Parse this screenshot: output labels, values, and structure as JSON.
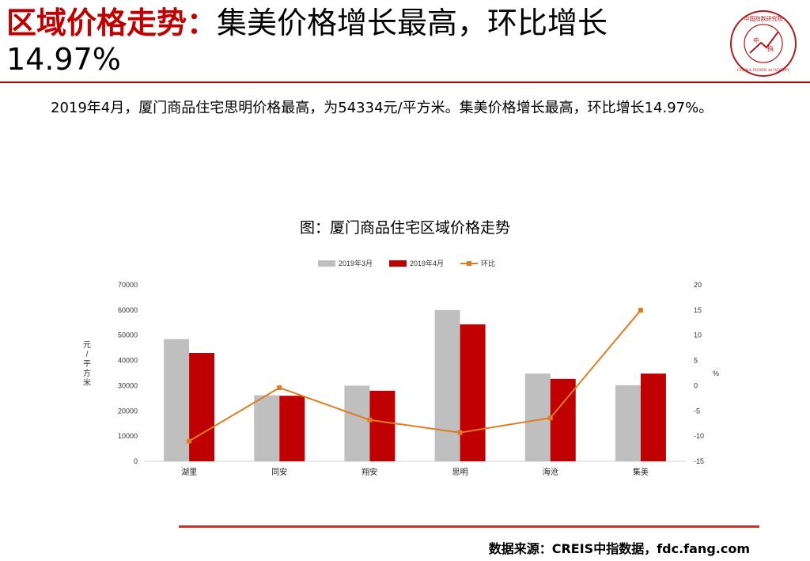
{
  "header": {
    "title_red": "区域价格走势",
    "title_sep": "：",
    "title_black": "集美价格增长最高，环比增长14.97%"
  },
  "logo": {
    "text_top": "中国指数研究院",
    "text_center_1": "中",
    "text_center_2": "指",
    "text_bottom": "CHINA INDEX ACADEMY",
    "icon": "china-index-academy-seal"
  },
  "summary": "2019年4月，厦门商品住宅思明价格最高，为54334元/平方米。集美价格增长最高，环比增长14.97%。",
  "chart_title": "图：厦门商品住宅区域价格走势",
  "chart_data": {
    "type": "bar",
    "categories": [
      "湖里",
      "同安",
      "翔安",
      "思明",
      "海沧",
      "集美"
    ],
    "series": [
      {
        "name": "2019年3月",
        "type": "bar",
        "axis": "left",
        "color": "#bfbfbf",
        "values": [
          48500,
          26200,
          30000,
          60000,
          34800,
          30200
        ]
      },
      {
        "name": "2019年4月",
        "type": "bar",
        "axis": "left",
        "color": "#c00000",
        "values": [
          43000,
          26000,
          28000,
          54334,
          32700,
          34800
        ]
      },
      {
        "name": "环比",
        "type": "line",
        "axis": "right",
        "color": "#e07b24",
        "values": [
          -11.0,
          -0.4,
          -6.8,
          -9.3,
          -6.4,
          14.97
        ]
      }
    ],
    "ylabel": "元/平方米",
    "y2label": "%",
    "ylim": [
      0,
      70000
    ],
    "yticks": [
      0,
      10000,
      20000,
      30000,
      40000,
      50000,
      60000,
      70000
    ],
    "y2lim": [
      -15,
      20
    ],
    "y2ticks": [
      -15,
      -10,
      -5,
      0,
      5,
      10,
      15,
      20
    ],
    "legend_position": "top",
    "grid": false
  },
  "source": "数据来源：CREIS中指数据，fdc.fang.com"
}
